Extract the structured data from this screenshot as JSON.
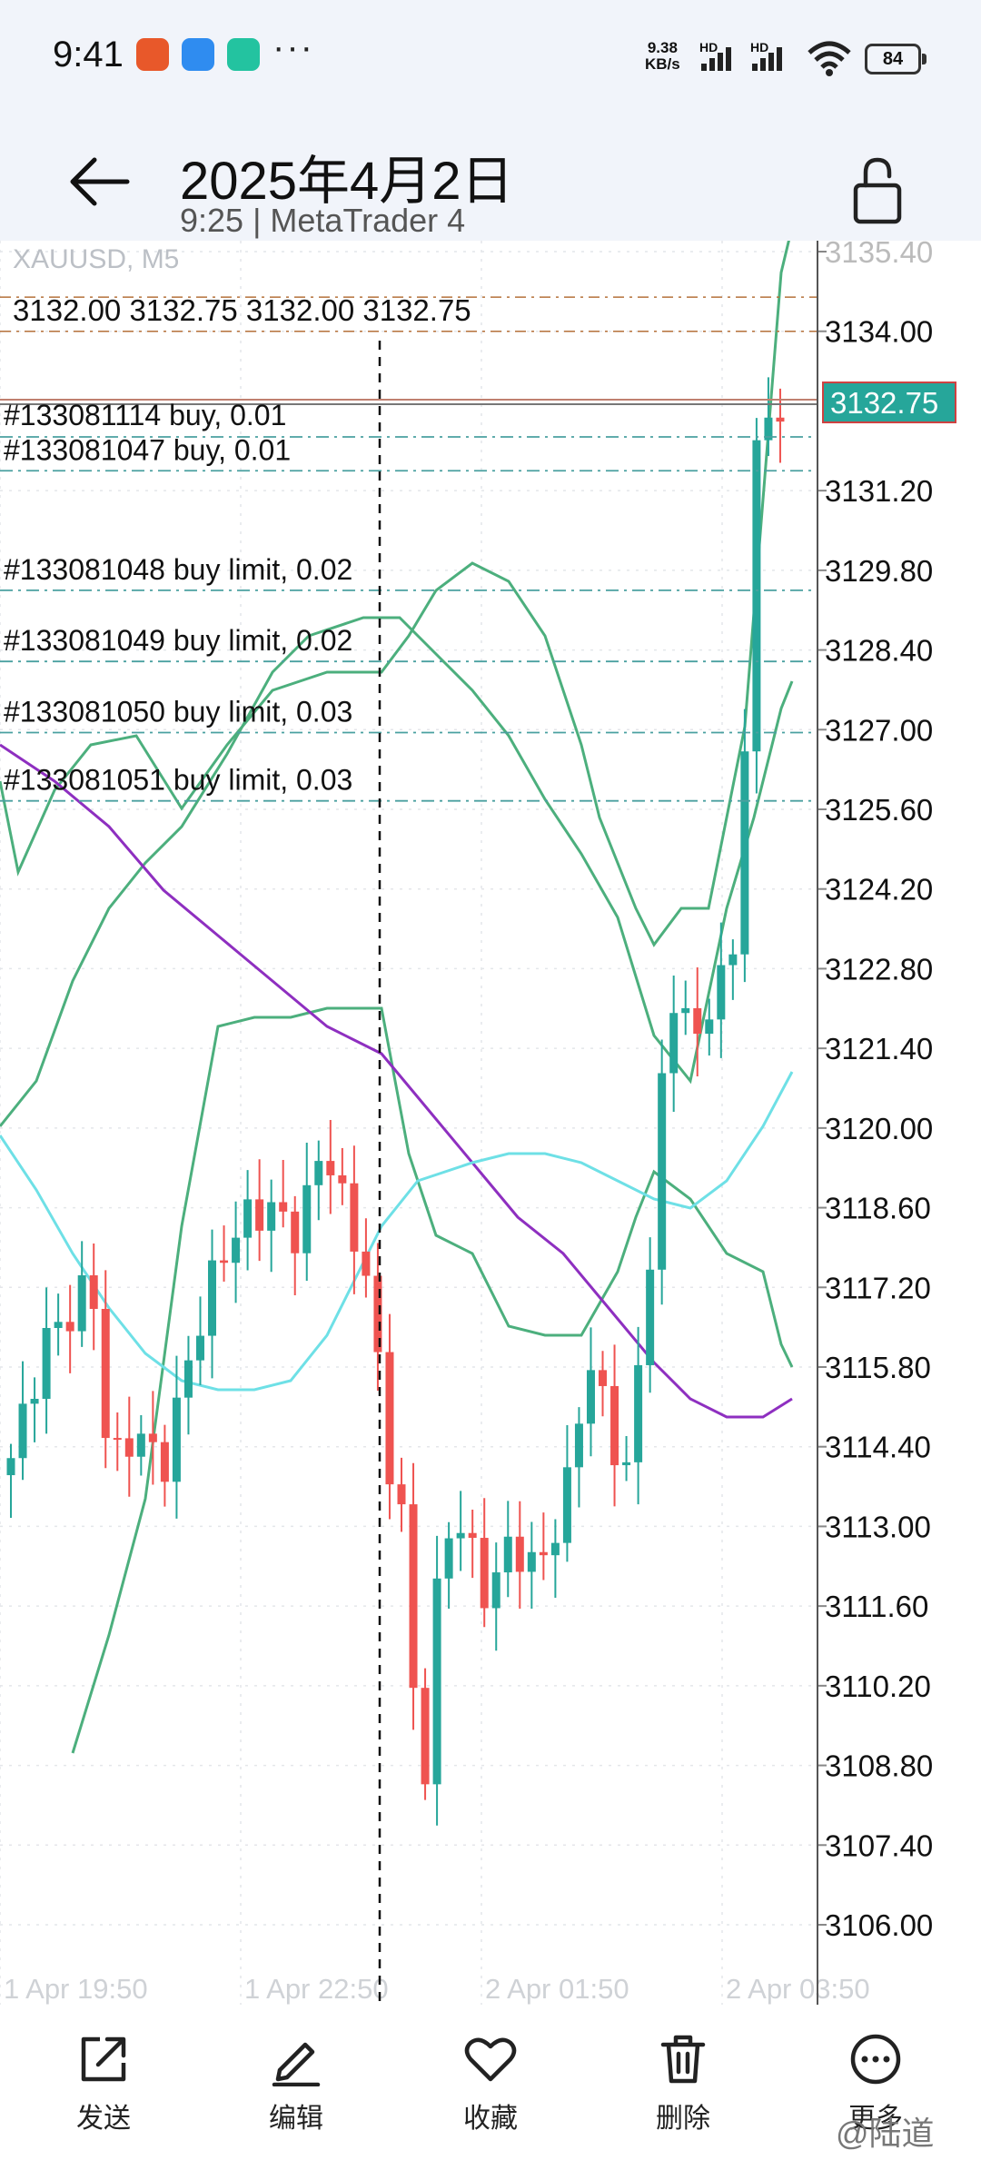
{
  "status_bar": {
    "time": "9:41",
    "net_speed_value": "9.38",
    "net_speed_unit": "KB/s",
    "hd_label_1": "HD",
    "hd_label_2": "HD",
    "battery": "84",
    "app_icon_colors": [
      "#e8582a",
      "#2f8cf0",
      "#23c3a0"
    ]
  },
  "header": {
    "title": "2025年4月2日",
    "subtitle": "9:25 | MetaTrader 4",
    "back_icon": "arrow-left-icon",
    "lock_icon": "lock-open-icon"
  },
  "chart": {
    "faint_header_text": "XAUUSD, M5",
    "ohlc_text": "3132.00 3132.75 3132.00 3132.75",
    "current_price_label": "3132.75",
    "price_axis_ticks": [
      "3135.40",
      "3134.00",
      "3131.20",
      "3129.80",
      "3128.40",
      "3127.00",
      "3125.60",
      "3124.20",
      "3122.80",
      "3121.40",
      "3120.00",
      "3118.60",
      "3117.20",
      "3115.80",
      "3114.40",
      "3113.00",
      "3111.60",
      "3110.20",
      "3108.80",
      "3107.40",
      "3106.00"
    ],
    "time_axis_labels": [
      "1 Apr 19:50",
      "1 Apr 22:50",
      "2 Apr 01:50",
      "2 Apr 03:50"
    ],
    "orders": [
      {
        "text": "#133081114 buy, 0.01",
        "price": 3132.75
      },
      {
        "text": "#133081047 buy, 0.01",
        "price": 3131.9
      },
      {
        "text": "#133081048 buy limit, 0.02",
        "price": 3129.8
      },
      {
        "text": "#133081049 buy limit, 0.02",
        "price": 3128.55
      },
      {
        "text": "#133081050 buy limit, 0.03",
        "price": 3127.3
      },
      {
        "text": "#133081051 buy limit, 0.03",
        "price": 3126.1
      }
    ],
    "colors": {
      "bull": "#26a69a",
      "bear": "#ef5350",
      "bollinger": "#4caf7d",
      "ma_slow": "#8e2fc0",
      "ma_fast": "#6ee0e6",
      "order_line": "#4aa0a0",
      "price_label_bg": "#26a69a"
    }
  },
  "bottom_bar": {
    "buttons": [
      {
        "label": "发送",
        "icon": "share-icon"
      },
      {
        "label": "编辑",
        "icon": "pencil-icon"
      },
      {
        "label": "收藏",
        "icon": "heart-icon"
      },
      {
        "label": "删除",
        "icon": "trash-icon"
      },
      {
        "label": "更多",
        "icon": "more-icon"
      }
    ],
    "watermark": "@陆道"
  }
}
